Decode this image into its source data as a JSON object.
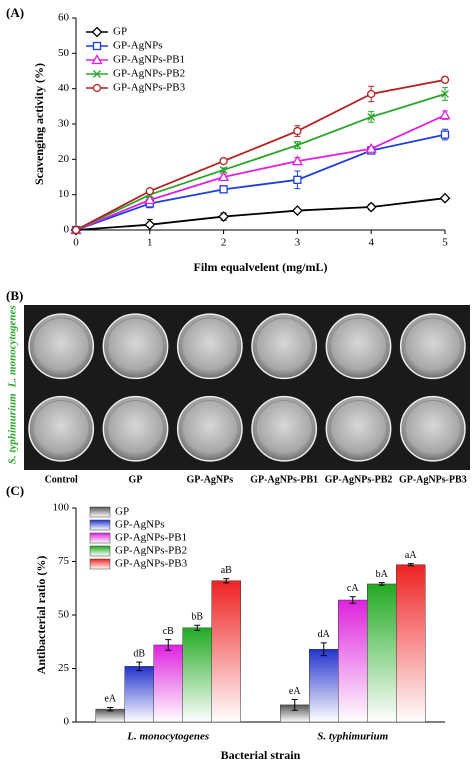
{
  "chart_data": [
    {
      "type": "line",
      "panel_label": "(A)",
      "x_label": "Film equalvelent (mg/mL)",
      "y_label": "Scavenging activity (%)",
      "x": [
        0,
        1,
        2,
        3,
        4,
        5
      ],
      "xlim": [
        0,
        5
      ],
      "xticks": [
        0,
        1,
        2,
        3,
        4,
        5
      ],
      "ylim": [
        0,
        60
      ],
      "yticks": [
        0,
        10,
        20,
        30,
        40,
        50,
        60
      ],
      "legend": "top-left",
      "series": [
        {
          "name": "GP",
          "color": "#000000",
          "marker": "diamond",
          "values": [
            0,
            1.5,
            3.8,
            5.5,
            6.5,
            9.0
          ],
          "errors": [
            0,
            1.5,
            1.0,
            0.4,
            0.8,
            0.5
          ]
        },
        {
          "name": "GP-AgNPs",
          "color": "#1f3fd6",
          "marker": "square",
          "values": [
            0,
            7.5,
            11.5,
            14.2,
            22.5,
            27.0
          ],
          "errors": [
            0,
            1.2,
            1.0,
            2.5,
            0.8,
            1.5
          ]
        },
        {
          "name": "GP-AgNPs-PB1",
          "color": "#e020e0",
          "marker": "triangle",
          "values": [
            0,
            8.5,
            15.0,
            19.5,
            23.0,
            32.5
          ],
          "errors": [
            0,
            0.8,
            0.8,
            1.0,
            0.6,
            1.2
          ]
        },
        {
          "name": "GP-AgNPs-PB2",
          "color": "#2aa52a",
          "marker": "x",
          "values": [
            0,
            10.0,
            17.0,
            24.0,
            32.0,
            38.5
          ],
          "errors": [
            0,
            0.6,
            0.6,
            1.0,
            1.5,
            1.8
          ]
        },
        {
          "name": "GP-AgNPs-PB3",
          "color": "#b22222",
          "marker": "circle",
          "values": [
            0,
            11.0,
            19.5,
            28.0,
            38.5,
            42.5
          ],
          "errors": [
            0,
            0.5,
            0.6,
            1.5,
            2.2,
            0.8
          ]
        }
      ]
    },
    {
      "type": "photo-grid",
      "panel_label": "(B)",
      "row_labels": [
        "L. monocytogenes",
        "S. typhimurium"
      ],
      "column_labels": [
        "Control",
        "GP",
        "GP-AgNPs",
        "GP-AgNPs-PB1",
        "GP-AgNPs-PB2",
        "GP-AgNPs-PB3"
      ]
    },
    {
      "type": "bar",
      "panel_label": "(C)",
      "x_label": "Bacterial strain",
      "y_label": "Antibacterial ratio (%)",
      "categories": [
        "L. monocytogenes",
        "S. typhimurium"
      ],
      "ylim": [
        0,
        100
      ],
      "yticks": [
        0,
        25,
        50,
        75,
        100
      ],
      "legend": "top-left",
      "series": [
        {
          "name": "GP",
          "color": "#555555",
          "values": [
            6,
            8
          ],
          "errors": [
            0.8,
            2.5
          ],
          "labels": [
            "eA",
            "eA"
          ]
        },
        {
          "name": "GP-AgNPs",
          "color": "#2233cc",
          "values": [
            26,
            34
          ],
          "errors": [
            2.0,
            3.0
          ],
          "labels": [
            "dB",
            "dA"
          ]
        },
        {
          "name": "GP-AgNPs-PB1",
          "color": "#dd22dd",
          "values": [
            36,
            57
          ],
          "errors": [
            2.5,
            1.5
          ],
          "labels": [
            "cB",
            "cA"
          ]
        },
        {
          "name": "GP-AgNPs-PB2",
          "color": "#22aa22",
          "values": [
            44,
            64.5
          ],
          "errors": [
            1.2,
            0.6
          ],
          "labels": [
            "bB",
            "bA"
          ]
        },
        {
          "name": "GP-AgNPs-PB3",
          "color": "#ee2222",
          "values": [
            66,
            73.5
          ],
          "errors": [
            1.0,
            0.5
          ],
          "labels": [
            "aB",
            "aA"
          ]
        }
      ]
    }
  ]
}
